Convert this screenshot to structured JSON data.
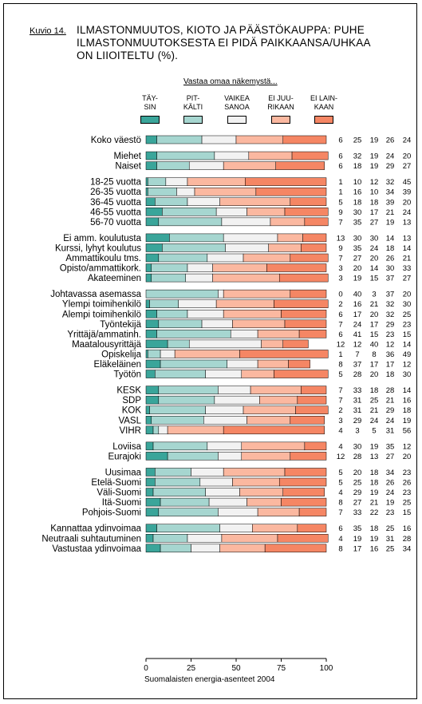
{
  "figure_label": "Kuvio 14.",
  "title_lines": [
    "ILMASTONMUUTOS, KIOTO JA PÄÄSTÖKAUPPA: PUHE",
    "ILMASTONMUUTOKSESTA EI PIDÄ PAIKKAANSA/UHKAA",
    "ON LIIOITELTU (%)."
  ],
  "legend_title": "Vastaa omaa näkemystä...",
  "legend": [
    {
      "lines": [
        "TÄY-",
        "SIN"
      ],
      "color": "#3aa59a"
    },
    {
      "lines": [
        "PIT-",
        "KÄLTI"
      ],
      "color": "#a6d6d0"
    },
    {
      "lines": [
        "VAIKEA",
        "SANOA"
      ],
      "color": "#f2f2f2"
    },
    {
      "lines": [
        "EI JUU-",
        "RIKAAN"
      ],
      "color": "#fbb8a0"
    },
    {
      "lines": [
        "EI LAIN-",
        "KAAN"
      ],
      "color": "#f58664"
    }
  ],
  "source": "Suomalaisten energia-asenteet 2004",
  "chart_data": {
    "type": "bar",
    "stacked": true,
    "orientation": "horizontal",
    "xlim": [
      0,
      100
    ],
    "xticks": [
      0,
      25,
      50,
      75,
      100
    ],
    "categories": [
      "Koko väestö",
      "Miehet",
      "Naiset",
      "18-25 vuotta",
      "26-35 vuotta",
      "36-45 vuotta",
      "46-55 vuotta",
      "56-70 vuotta",
      "Ei amm. koulutusta",
      "Kurssi, lyhyt koulutus",
      "Ammattikoulu tms.",
      "Opisto/ammattikork.",
      "Akateeminen",
      "Johtavassa asemassa",
      "Ylempi toimihenkilö",
      "Alempi toimihenkilö",
      "Työntekijä",
      "Yrittäjä/ammatinh.",
      "Maatalousyrittäjä",
      "Opiskelija",
      "Eläkeläinen",
      "Työtön",
      "KESK",
      "SDP",
      "KOK",
      "VASL",
      "VIHR",
      "Loviisa",
      "Eurajoki",
      "Uusimaa",
      "Etelä-Suomi",
      "Väli-Suomi",
      "Itä-Suomi",
      "Pohjois-Suomi",
      "Kannattaa ydinvoimaa",
      "Neutraali suhtautuminen",
      "Vastustaa ydinvoimaa"
    ],
    "groups": [
      1,
      2,
      5,
      5,
      9,
      5,
      2,
      5,
      3
    ],
    "series": [
      {
        "name": "TÄYSIN",
        "values": [
          6,
          6,
          6,
          1,
          1,
          5,
          9,
          7,
          13,
          9,
          7,
          3,
          3,
          0,
          2,
          6,
          7,
          6,
          12,
          1,
          8,
          5,
          7,
          7,
          2,
          3,
          4,
          4,
          12,
          5,
          5,
          4,
          8,
          7,
          6,
          4,
          8
        ]
      },
      {
        "name": "PITKÄLTI",
        "values": [
          25,
          32,
          18,
          10,
          16,
          18,
          30,
          35,
          30,
          35,
          27,
          20,
          19,
          40,
          16,
          17,
          24,
          41,
          12,
          7,
          37,
          28,
          33,
          31,
          31,
          29,
          3,
          30,
          28,
          20,
          25,
          29,
          27,
          33,
          35,
          19,
          17
        ]
      },
      {
        "name": "VAIKEA SANOA",
        "values": [
          19,
          19,
          19,
          12,
          10,
          18,
          17,
          27,
          30,
          24,
          20,
          14,
          15,
          3,
          21,
          20,
          17,
          15,
          40,
          8,
          17,
          20,
          18,
          25,
          21,
          24,
          5,
          19,
          13,
          18,
          18,
          19,
          21,
          22,
          18,
          19,
          16
        ]
      },
      {
        "name": "EI JUURIKAAN",
        "values": [
          26,
          24,
          29,
          32,
          34,
          39,
          21,
          19,
          14,
          18,
          26,
          30,
          37,
          37,
          32,
          32,
          29,
          23,
          12,
          36,
          17,
          18,
          28,
          21,
          29,
          24,
          31,
          35,
          27,
          34,
          26,
          24,
          19,
          23,
          25,
          31,
          25
        ]
      },
      {
        "name": "EI LAINKAAN",
        "values": [
          24,
          20,
          27,
          45,
          39,
          20,
          24,
          13,
          13,
          14,
          21,
          33,
          27,
          20,
          30,
          25,
          23,
          15,
          14,
          49,
          12,
          30,
          14,
          16,
          18,
          19,
          56,
          12,
          20,
          23,
          26,
          23,
          25,
          15,
          16,
          28,
          34
        ]
      }
    ]
  }
}
